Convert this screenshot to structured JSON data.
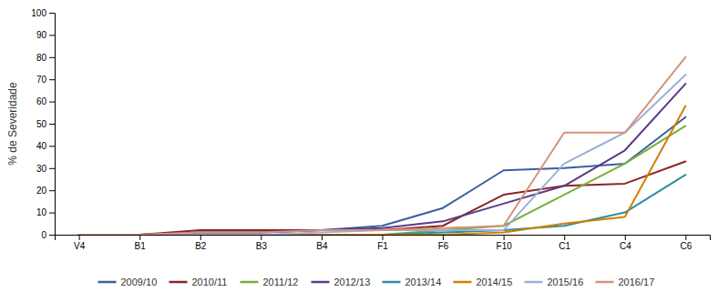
{
  "chart_data": {
    "type": "line",
    "categories": [
      "V4",
      "B1",
      "B2",
      "B3",
      "B4",
      "F1",
      "F6",
      "F10",
      "C1",
      "C4",
      "C6"
    ],
    "series": [
      {
        "name": "2009/10",
        "color": "#3A5FA0",
        "values": [
          0,
          0,
          1,
          1,
          2,
          4,
          12,
          29,
          30,
          32,
          53
        ]
      },
      {
        "name": "2010/11",
        "color": "#8B2525",
        "values": [
          0,
          0,
          2,
          2,
          2,
          2,
          4,
          18,
          22,
          23,
          33
        ]
      },
      {
        "name": "2011/12",
        "color": "#7AAF3A",
        "values": [
          0,
          0,
          0,
          0,
          0,
          0,
          2,
          4,
          18,
          32,
          49
        ]
      },
      {
        "name": "2012/13",
        "color": "#5B3A8B",
        "values": [
          0,
          0,
          1,
          1,
          2,
          3,
          6,
          14,
          22,
          38,
          68
        ]
      },
      {
        "name": "2013/14",
        "color": "#2A8FA0",
        "values": [
          0,
          0,
          0,
          0,
          0,
          0,
          1,
          2,
          4,
          10,
          27
        ]
      },
      {
        "name": "2014/15",
        "color": "#D47E00",
        "values": [
          0,
          0,
          0,
          0,
          0,
          0,
          0,
          1,
          5,
          8,
          58
        ]
      },
      {
        "name": "2015/16",
        "color": "#9BB0D8",
        "values": [
          0,
          0,
          0,
          0,
          1,
          2,
          2,
          2,
          32,
          46,
          72
        ]
      },
      {
        "name": "2016/17",
        "color": "#D4937A",
        "values": [
          0,
          0,
          1,
          1,
          2,
          2,
          3,
          4,
          46,
          46,
          80
        ]
      }
    ],
    "ylabel": "% de Severidade",
    "ylim": [
      0,
      100
    ],
    "yticks": [
      0,
      10,
      20,
      30,
      40,
      50,
      60,
      70,
      80,
      90,
      100
    ],
    "grid": false,
    "legend": "bottom"
  }
}
